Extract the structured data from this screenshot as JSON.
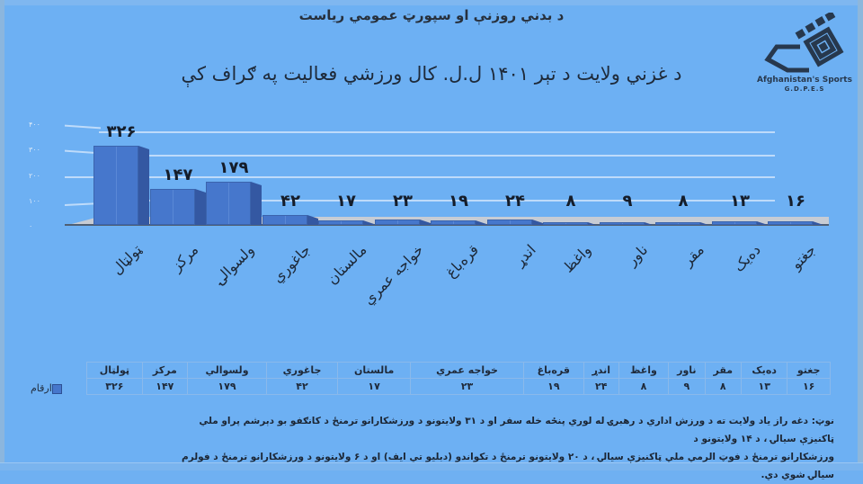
{
  "header": {
    "title": "د بدني روزنې او سپورټ عمومي رياست"
  },
  "logo": {
    "name": "Afghanistan's Sports",
    "sub": "G.D.P.E.S"
  },
  "chart_data": {
    "type": "bar",
    "title": "د غزني ولايت د تېر ۱۴۰۱ ل.ل. کال ورزشي فعاليت په ګراف کې",
    "xlabel": "",
    "ylabel": "",
    "ylim": [
      0,
      400
    ],
    "yticks": [
      "۰",
      "۱۰۰",
      "۲۰۰",
      "۳۰۰",
      "۴۰۰"
    ],
    "grid": true,
    "style": "3d-column",
    "categories": [
      "ټولټال",
      "مرکز",
      "ولسوالۍ",
      "جاغوري",
      "مالستان",
      "خواجه عمري",
      "قره‌باغ",
      "اندړ",
      "واغظ",
      "ناور",
      "مقر",
      "ده‌یک",
      "جغتو"
    ],
    "values": [
      326,
      147,
      179,
      42,
      17,
      23,
      19,
      24,
      8,
      9,
      8,
      13,
      16
    ],
    "value_labels": [
      "۳۲۶",
      "۱۴۷",
      "۱۷۹",
      "۴۲",
      "۱۷",
      "۲۳",
      "۱۹",
      "۲۴",
      "۸",
      "۹",
      "۸",
      "۱۳",
      "۱۶"
    ],
    "series": [
      {
        "name": "ارقام",
        "color": "#4677cc",
        "values": [
          326,
          147,
          179,
          42,
          17,
          23,
          19,
          24,
          8,
          9,
          8,
          13,
          16
        ]
      }
    ],
    "legend": {
      "position": "data-table-left",
      "entries": [
        "ارقام"
      ]
    }
  },
  "table": {
    "series_label": "ارقام",
    "headers_rtl": [
      "جغتو",
      "ده‌یک",
      "مقر",
      "ناور",
      "واغظ",
      "اندړ",
      "قره‌باغ",
      "خواجه عمري",
      "مالستان",
      "جاغوري",
      "ولسوالي",
      "مرکز",
      "ټولټال"
    ],
    "values_rtl": [
      "۱۶",
      "۱۳",
      "۸",
      "۹",
      "۸",
      "۲۴",
      "۱۹",
      "۲۳",
      "۱۷",
      "۴۲",
      "۱۷۹",
      "۱۴۷",
      "۳۲۶"
    ]
  },
  "note": {
    "label": "نوټ:",
    "line1": "دغه راز یاد ولایت ته د ورزش اداري د رهبرۍ له لوري پنځه خله سفر او د ۳۱ ولايتونو د ورزشکارانو ترمنځ د کانګفو بو دېرشم پراو ملي ټاکنیزې سیالۍ ، د ۱۴ ولایتونو د",
    "line2": "ورزشکارانو ترمنځ د فوټ الرمي ملي ټاکنیزې سیالۍ ، د ۲۰ ولایتونو ترمنځ د تکواندو (دبليو تي ايف) او د ۶ ولايتونو د ورزشکارانو ترمنځ د فولرم سیالۍ شوي دي."
  },
  "colors": {
    "background": "#6db0f3",
    "bar_front": "#4677cc",
    "bar_side": "#3458a2",
    "floor": "#c7ccd4"
  }
}
